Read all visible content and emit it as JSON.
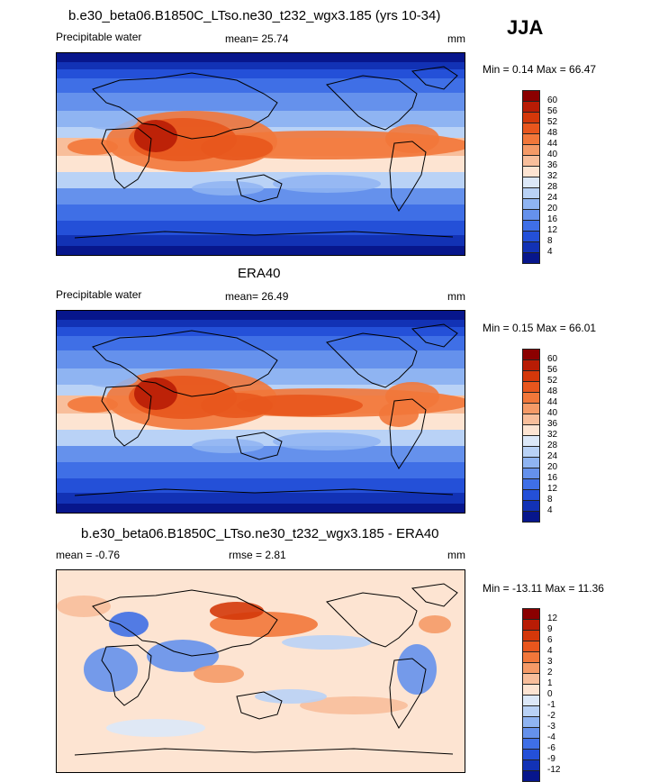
{
  "season": "JJA",
  "panels": [
    {
      "id": "model",
      "title": "b.e30_beta06.B1850C_LTso.ne30_t232_wgx3.185 (yrs 10-34)",
      "left_label": "Precipitable water",
      "center_label": "mean=  25.74",
      "units": "mm",
      "minmax": "Min =   0.14 Max =  66.47",
      "field": "full"
    },
    {
      "id": "obs",
      "title": "ERA40",
      "left_label": "Precipitable water",
      "center_label": "mean=  26.49",
      "units": "mm",
      "minmax": "Min =   0.15 Max =  66.01",
      "field": "full"
    },
    {
      "id": "diff",
      "title": "b.e30_beta06.B1850C_LTso.ne30_t232_wgx3.185 - ERA40",
      "left_label": "mean =  -0.76",
      "center_label": "rmse =   2.81",
      "units": "mm",
      "minmax": "Min = -13.11 Max =  11.36",
      "field": "diff"
    }
  ],
  "colorbar_full": {
    "labels": [
      "60",
      "56",
      "52",
      "48",
      "44",
      "40",
      "36",
      "32",
      "28",
      "24",
      "20",
      "16",
      "12",
      "8",
      "4"
    ],
    "colors": [
      "#8b0000",
      "#b81c05",
      "#d4380a",
      "#e8561d",
      "#f2773a",
      "#f59a67",
      "#f8be9b",
      "#fde4d2",
      "#dce8f8",
      "#b9d2f6",
      "#8fb4f2",
      "#6591ec",
      "#3f6fe6",
      "#2450d8",
      "#1232b5",
      "#07168c"
    ]
  },
  "colorbar_diff": {
    "labels": [
      "12",
      "9",
      "6",
      "4",
      "3",
      "2",
      "1",
      "0",
      "-1",
      "-2",
      "-3",
      "-4",
      "-6",
      "-9",
      "-12"
    ],
    "colors": [
      "#8b0000",
      "#b81c05",
      "#d4380a",
      "#e8561d",
      "#f2773a",
      "#f59a67",
      "#f8be9b",
      "#fde4d2",
      "#dce8f8",
      "#b9d2f6",
      "#8fb4f2",
      "#6591ec",
      "#3f6fe6",
      "#2450d8",
      "#1232b5",
      "#07168c"
    ]
  }
}
